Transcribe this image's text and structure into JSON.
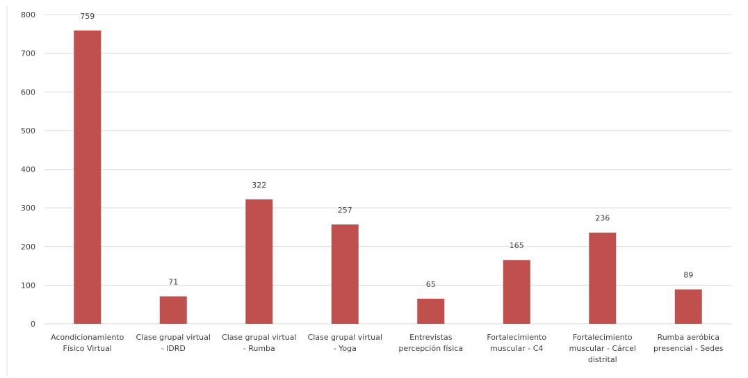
{
  "chart_data": {
    "type": "bar",
    "title": "",
    "xlabel": "",
    "ylabel": "",
    "ylim": [
      0,
      800
    ],
    "yticks": [
      0,
      100,
      200,
      300,
      400,
      500,
      600,
      700,
      800
    ],
    "grid": true,
    "legend": "none",
    "bar_color": "#c0504d",
    "gridline_color": "#d9d9d9",
    "categories": [
      [
        "Acondicionamiento",
        "Físico Virtual"
      ],
      [
        "Clase grupal virtual",
        "- IDRD"
      ],
      [
        "Clase grupal virtual",
        "- Rumba"
      ],
      [
        "Clase grupal virtual",
        "- Yoga"
      ],
      [
        "Entrevistas",
        "percepción física"
      ],
      [
        "Fortalecimiento",
        "muscular - C4"
      ],
      [
        "Fortalecimiento",
        "muscular - Cárcel",
        "distrital"
      ],
      [
        "Rumba aeróbica",
        "presencial - Sedes"
      ]
    ],
    "values": [
      759,
      71,
      322,
      257,
      65,
      165,
      236,
      89
    ],
    "data_labels": [
      "759",
      "71",
      "322",
      "257",
      "65",
      "165",
      "236",
      "89"
    ]
  }
}
